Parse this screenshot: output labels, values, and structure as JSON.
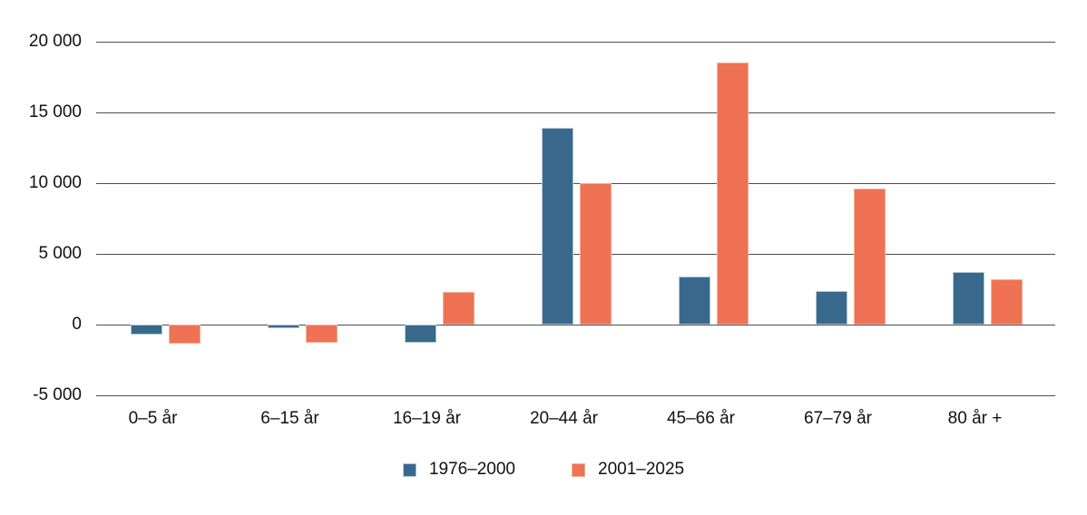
{
  "chart_data": {
    "type": "bar",
    "title": "",
    "xlabel": "",
    "ylabel": "",
    "categories": [
      "0–5 år",
      "6–15 år",
      "16–19 år",
      "20–44 år",
      "45–66 år",
      "67–79 år",
      "80 år +"
    ],
    "series": [
      {
        "name": "1976–2000",
        "color": "#38698C",
        "border_color": "#AEC6D5",
        "values": [
          -700,
          -250,
          -1300,
          13900,
          3400,
          2400,
          3700
        ]
      },
      {
        "name": "2001–2025",
        "color": "#EE7253",
        "border_color": "#F6AE98",
        "values": [
          -1350,
          -1300,
          2300,
          10000,
          18500,
          9600,
          3200
        ]
      }
    ],
    "ylim": [
      -5000,
      20000
    ],
    "yticks": {
      "values": [
        20000,
        15000,
        10000,
        5000,
        0,
        -5000
      ],
      "labels": [
        "20 000",
        "15 000",
        "10 000",
        "5 000",
        "0",
        "-5 000"
      ]
    },
    "grid": true,
    "legend_position": "bottom-center",
    "gridline_color": "#4D4D4D",
    "text_color": "#111111",
    "background": "#FFFFFF"
  }
}
